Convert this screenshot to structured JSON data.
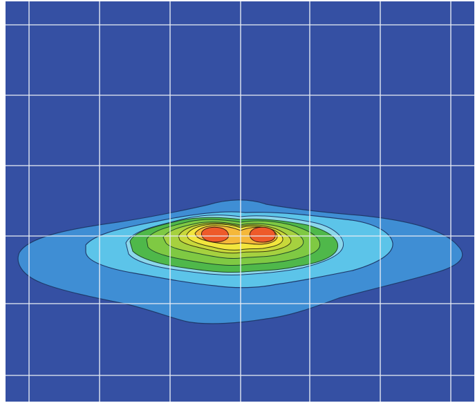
{
  "chart_data": {
    "type": "heatmap",
    "title": "",
    "xlabel": "",
    "ylabel": "",
    "grid": true,
    "colormap": [
      "#3550a3",
      "#3f8ed4",
      "#5cc4e9",
      "#8bd7ea",
      "#4fb84a",
      "#7fc943",
      "#c9d83a",
      "#f2e53d",
      "#f5b83a",
      "#ee5a2a"
    ],
    "levels": [
      {
        "name": "level-1",
        "color": "#3f8ed4"
      },
      {
        "name": "level-2",
        "color": "#5cc4e9"
      },
      {
        "name": "level-3",
        "color": "#8bd7ea"
      },
      {
        "name": "level-4",
        "color": "#4fb84a"
      },
      {
        "name": "level-5",
        "color": "#7fc943"
      },
      {
        "name": "level-6",
        "color": "#a6d13f"
      },
      {
        "name": "level-7",
        "color": "#c9d83a"
      },
      {
        "name": "level-8",
        "color": "#f2e53d"
      },
      {
        "name": "level-9",
        "color": "#f5b83a"
      },
      {
        "name": "level-10",
        "color": "#ee5a2a"
      }
    ],
    "peaks": 2
  }
}
